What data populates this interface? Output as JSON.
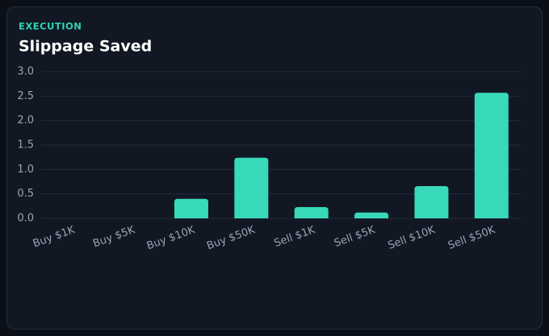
{
  "chart_data": {
    "type": "bar",
    "eyebrow": "EXECUTION",
    "title": "Slippage Saved",
    "categories": [
      "Buy $1K",
      "Buy $5K",
      "Buy $10K",
      "Buy $50K",
      "Sell $1K",
      "Sell $5K",
      "Sell $10K",
      "Sell $50K"
    ],
    "values": [
      0,
      0,
      0.4,
      1.24,
      0.23,
      0.12,
      0.66,
      2.57
    ],
    "color": "#38d9b9",
    "ylim": [
      0,
      3
    ],
    "yticks": [
      {
        "value": 0,
        "label": "0.0"
      },
      0.5,
      {
        "value": 1,
        "label": "1.0"
      },
      1.5,
      {
        "value": 2,
        "label": "2.0"
      },
      2.5,
      {
        "value": 3,
        "label": "3.0"
      }
    ],
    "grid": true
  }
}
